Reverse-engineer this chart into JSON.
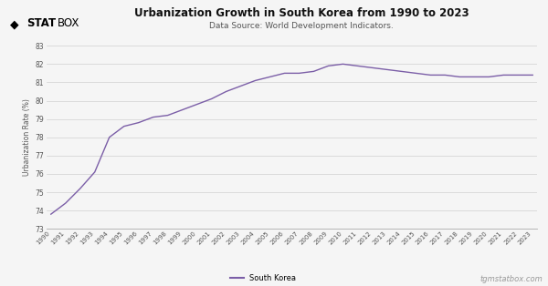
{
  "title": "Urbanization Growth in South Korea from 1990 to 2023",
  "subtitle": "Data Source: World Development Indicators.",
  "ylabel": "Urbanization Rate (%)",
  "legend_label": "South Korea",
  "line_color": "#7b5ea7",
  "background_color": "#f5f5f5",
  "watermark": "tgmstatbox.com",
  "ylim": [
    73,
    83
  ],
  "yticks": [
    73,
    74,
    75,
    76,
    77,
    78,
    79,
    80,
    81,
    82,
    83
  ],
  "years": [
    1990,
    1991,
    1992,
    1993,
    1994,
    1995,
    1996,
    1997,
    1998,
    1999,
    2000,
    2001,
    2002,
    2003,
    2004,
    2005,
    2006,
    2007,
    2008,
    2009,
    2010,
    2011,
    2012,
    2013,
    2014,
    2015,
    2016,
    2017,
    2018,
    2019,
    2020,
    2021,
    2022,
    2023
  ],
  "values": [
    73.8,
    74.4,
    75.2,
    76.1,
    78.0,
    78.6,
    78.8,
    79.1,
    79.2,
    79.5,
    79.8,
    80.1,
    80.5,
    80.8,
    81.1,
    81.3,
    81.5,
    81.5,
    81.6,
    81.9,
    82.0,
    81.9,
    81.8,
    81.7,
    81.6,
    81.5,
    81.4,
    81.4,
    81.3,
    81.3,
    81.3,
    81.4,
    81.4,
    81.4
  ]
}
